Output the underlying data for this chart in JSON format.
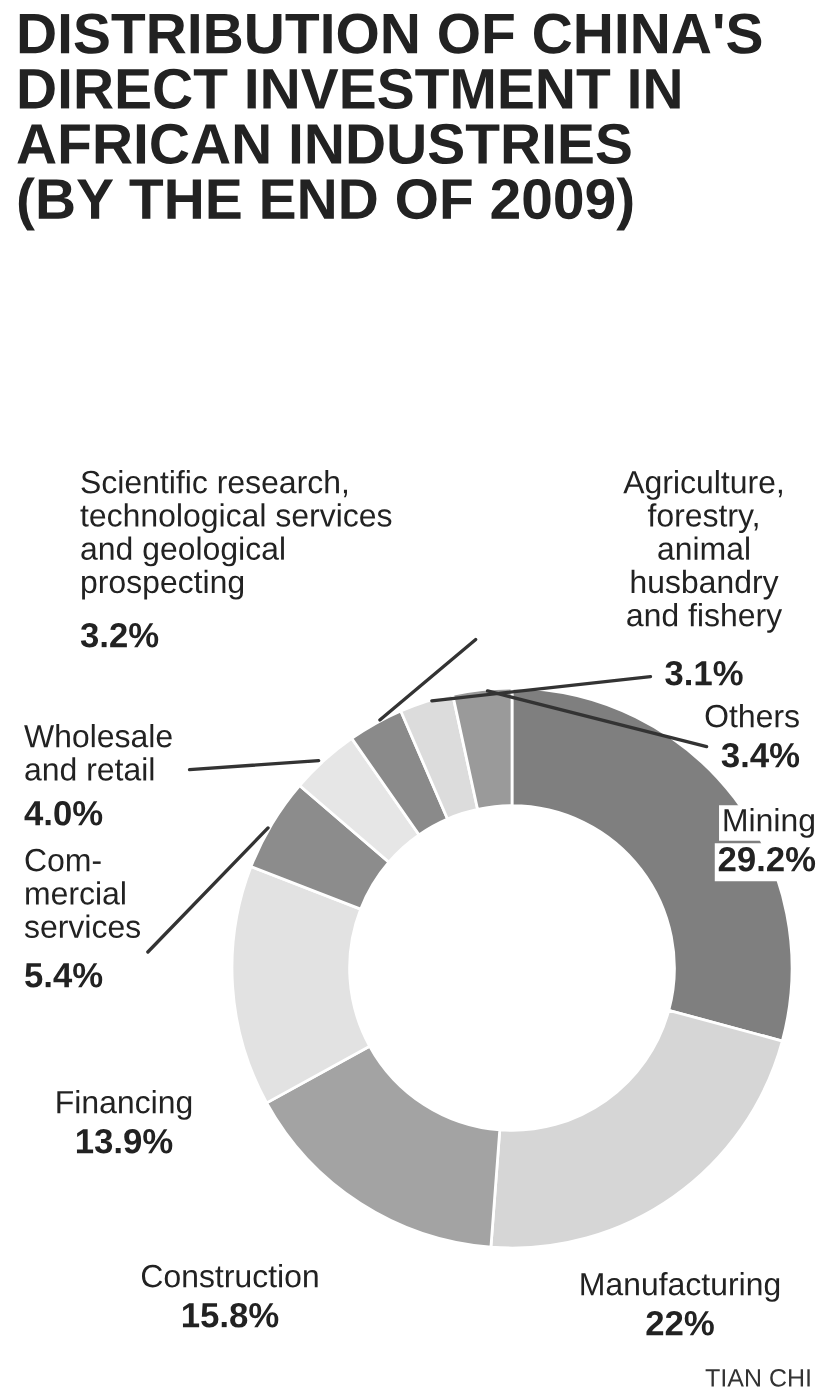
{
  "chart_data": {
    "type": "donut",
    "title": "DISTRIBUTION OF CHINA'S\nDIRECT INVESTMENT IN\nAFRICAN INDUSTRIES\n(BY THE END OF 2009)",
    "categories": [
      "Mining",
      "Manufacturing",
      "Construction",
      "Financing",
      "Com-\nmercial\nservices",
      "Wholesale\nand retail",
      "Scientific research,\ntechnological services\nand geological\nprospecting",
      "Agriculture,\nforestry,\nanimal\nhusbandry\nand fishery",
      "Others"
    ],
    "values": [
      29.2,
      22,
      15.8,
      13.9,
      5.4,
      4.0,
      3.2,
      3.1,
      3.4
    ],
    "value_labels": [
      "29.2%",
      "22%",
      "15.8%",
      "13.9%",
      "5.4%",
      "4.0%",
      "3.2%",
      "3.1%",
      "3.4%"
    ],
    "colors": [
      "#7f7f7f",
      "#d6d6d6",
      "#a3a3a3",
      "#e2e2e2",
      "#8c8c8c",
      "#e6e6e6",
      "#8a8a8a",
      "#dcdcdc",
      "#9a9a9a"
    ],
    "annotations": [
      "TIAN CHI"
    ]
  }
}
